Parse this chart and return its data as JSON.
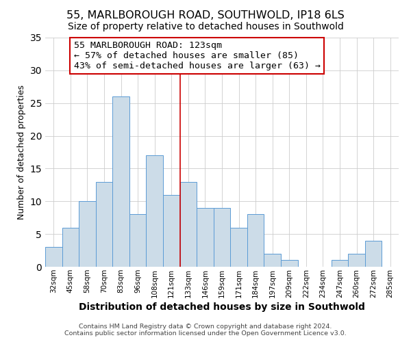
{
  "title": "55, MARLBOROUGH ROAD, SOUTHWOLD, IP18 6LS",
  "subtitle": "Size of property relative to detached houses in Southwold",
  "xlabel": "Distribution of detached houses by size in Southwold",
  "ylabel": "Number of detached properties",
  "footer_line1": "Contains HM Land Registry data © Crown copyright and database right 2024.",
  "footer_line2": "Contains public sector information licensed under the Open Government Licence v3.0.",
  "bar_labels": [
    "32sqm",
    "45sqm",
    "58sqm",
    "70sqm",
    "83sqm",
    "96sqm",
    "108sqm",
    "121sqm",
    "133sqm",
    "146sqm",
    "159sqm",
    "171sqm",
    "184sqm",
    "197sqm",
    "209sqm",
    "222sqm",
    "234sqm",
    "247sqm",
    "260sqm",
    "272sqm",
    "285sqm"
  ],
  "bar_values": [
    3,
    6,
    10,
    13,
    26,
    8,
    17,
    11,
    13,
    9,
    9,
    6,
    8,
    2,
    1,
    0,
    0,
    1,
    2,
    4,
    0
  ],
  "bar_color": "#ccdce8",
  "bar_edge_color": "#5b9bd5",
  "highlight_line_color": "#cc0000",
  "ylim": [
    0,
    35
  ],
  "yticks": [
    0,
    5,
    10,
    15,
    20,
    25,
    30,
    35
  ],
  "annotation_title": "55 MARLBOROUGH ROAD: 123sqm",
  "annotation_line1": "← 57% of detached houses are smaller (85)",
  "annotation_line2": "43% of semi-detached houses are larger (63) →",
  "annotation_box_color": "#ffffff",
  "annotation_border_color": "#cc0000",
  "title_fontsize": 11.5,
  "subtitle_fontsize": 10,
  "annotation_fontsize": 9.5,
  "xlabel_fontsize": 10,
  "ylabel_fontsize": 9,
  "footer_fontsize": 6.8
}
